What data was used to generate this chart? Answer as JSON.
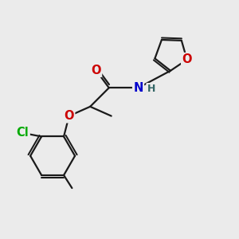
{
  "bg_color": "#ebebeb",
  "bond_color": "#1a1a1a",
  "bond_width": 1.6,
  "atom_colors": {
    "O": "#cc0000",
    "N": "#0000cc",
    "Cl": "#00aa00",
    "H": "#336666",
    "C": "#1a1a1a"
  },
  "font_size_atom": 10.5
}
